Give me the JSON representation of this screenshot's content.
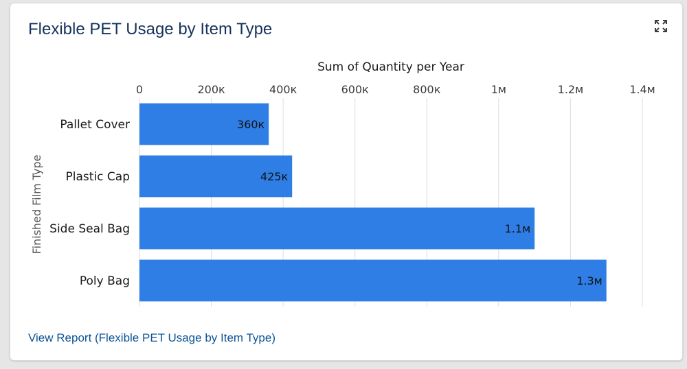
{
  "card": {
    "title": "Flexible PET Usage by Item Type",
    "expand_icon": "expand-icon",
    "report_link": "View Report (Flexible PET Usage by Item Type)"
  },
  "colors": {
    "bar": "#2e7ee6",
    "title": "#16325c",
    "link": "#0b5394",
    "grid": "#dddddd"
  },
  "chart_data": {
    "type": "bar",
    "orientation": "horizontal",
    "title": "Sum of Quantity per Year",
    "ylabel": "Finished Film Type",
    "categories": [
      "Pallet Cover",
      "Plastic Cap",
      "Side Seal Bag",
      "Poly Bag"
    ],
    "values": [
      360000,
      425000,
      1100000,
      1300000
    ],
    "data_labels": [
      "360к",
      "425к",
      "1.1м",
      "1.3м"
    ],
    "xlim": [
      0,
      1400000
    ],
    "x_ticks": [
      0,
      200000,
      400000,
      600000,
      800000,
      1000000,
      1200000,
      1400000
    ],
    "x_tick_labels": [
      "0",
      "200к",
      "400к",
      "600к",
      "800к",
      "1м",
      "1.2м",
      "1.4м"
    ],
    "grid": true,
    "legend": "none"
  }
}
